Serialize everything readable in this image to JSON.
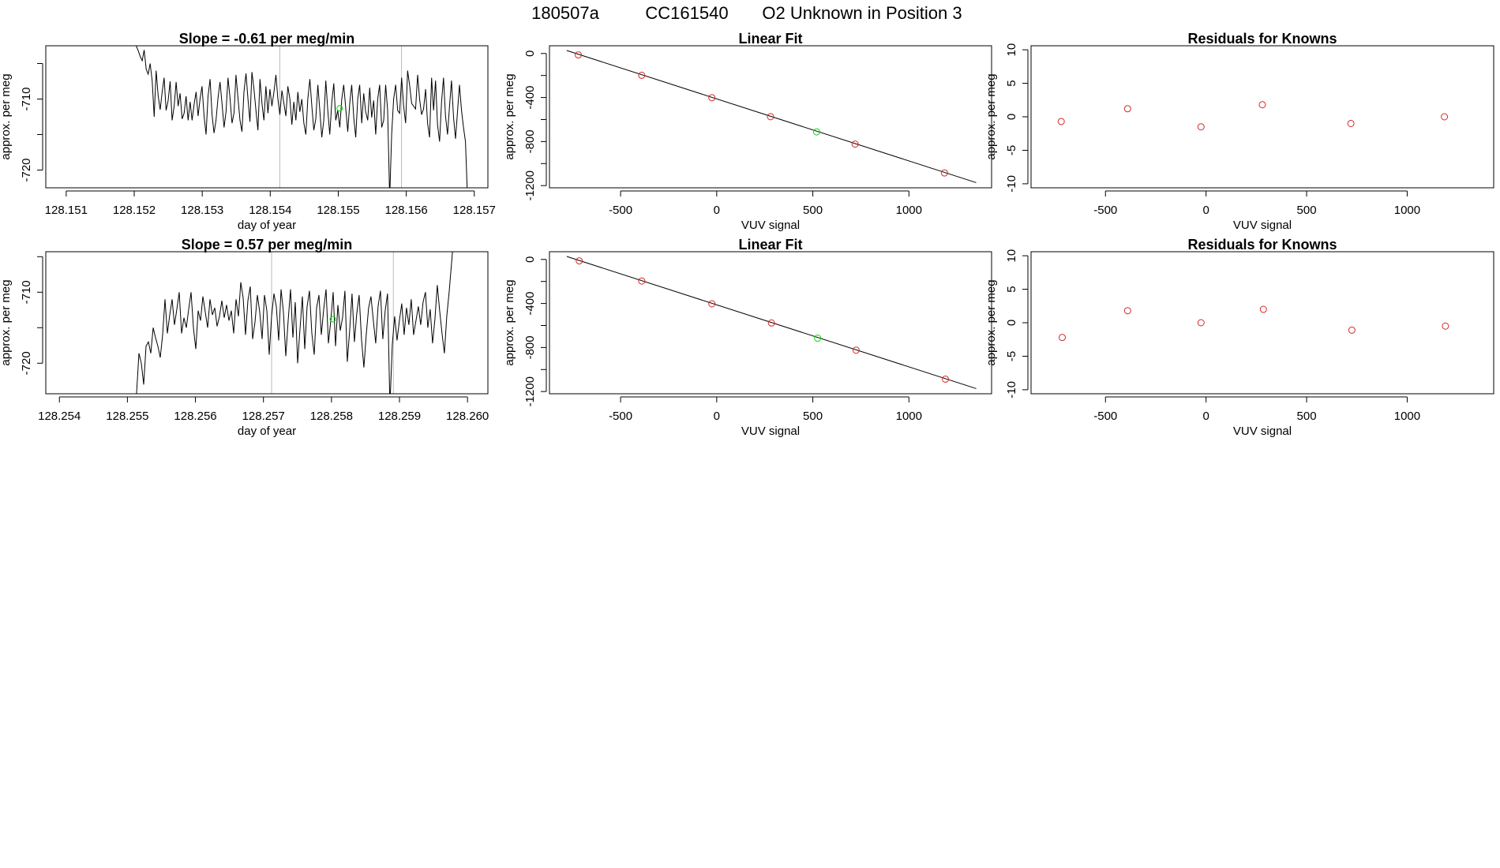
{
  "figure": {
    "title_parts": [
      "180507a",
      "CC161540",
      "O2 Unknown in Position  3"
    ]
  },
  "colors": {
    "known": "#d62728",
    "unknown": "#00dd00",
    "line": "#000000",
    "vline": "#bbbbbb"
  },
  "chart_data": [
    {
      "id": "ts1",
      "type": "line",
      "title": "Slope =  -0.61  per meg/min",
      "xlabel": "day of year",
      "ylabel": "approx. per meg",
      "xlim": [
        128.1507,
        128.1572
      ],
      "ylim": [
        -722.5,
        -702.5
      ],
      "xticks": [
        128.151,
        128.152,
        128.153,
        128.154,
        128.155,
        128.156,
        128.157
      ],
      "xtick_labels": [
        "128.151",
        "128.152",
        "128.153",
        "128.154",
        "128.155",
        "128.156",
        "128.157"
      ],
      "yticks": [
        -720,
        -715,
        -710,
        -705
      ],
      "ytick_labels": [
        "-720",
        "",
        "-710",
        ""
      ],
      "vlines": [
        128.15414,
        128.15593
      ],
      "marker": {
        "x": 128.15502,
        "y": -711.3,
        "label": "unknown"
      },
      "series": [
        {
          "name": "signal",
          "x_start": 128.152,
          "x_end": 128.1569,
          "values": [
            -700.5,
            -702.5,
            -703.2,
            -704.0,
            -704.6,
            -703.1,
            -705.8,
            -706.5,
            -705.0,
            -707.5,
            -712.5,
            -706.0,
            -709.5,
            -711.5,
            -709.0,
            -707.0,
            -711.6,
            -710.2,
            -707.5,
            -713.0,
            -711.0,
            -707.6,
            -711.0,
            -709.2,
            -712.8,
            -712.0,
            -709.6,
            -713.0,
            -710.4,
            -713.0,
            -710.8,
            -709.0,
            -712.4,
            -710.0,
            -708.2,
            -712.4,
            -715.0,
            -709.6,
            -707.2,
            -712.2,
            -714.8,
            -713.0,
            -709.8,
            -707.6,
            -710.6,
            -714.0,
            -711.8,
            -707.0,
            -709.8,
            -713.4,
            -712.0,
            -706.6,
            -709.8,
            -713.0,
            -714.6,
            -709.0,
            -706.4,
            -710.0,
            -713.2,
            -706.2,
            -708.6,
            -711.6,
            -714.4,
            -707.2,
            -710.6,
            -713.0,
            -708.2,
            -712.0,
            -708.6,
            -711.0,
            -709.0,
            -706.6,
            -710.0,
            -712.2,
            -708.8,
            -710.6,
            -712.4,
            -708.2,
            -710.0,
            -713.6,
            -710.4,
            -713.0,
            -709.0,
            -711.8,
            -710.0,
            -713.4,
            -715.0,
            -710.0,
            -707.2,
            -711.0,
            -714.4,
            -712.8,
            -708.0,
            -711.6,
            -715.4,
            -713.0,
            -707.4,
            -711.6,
            -715.0,
            -710.4,
            -707.8,
            -713.0,
            -711.6,
            -714.0,
            -710.0,
            -708.0,
            -711.4,
            -714.6,
            -710.6,
            -708.0,
            -712.6,
            -715.4,
            -710.0,
            -708.0,
            -713.4,
            -709.2,
            -711.8,
            -713.0,
            -708.4,
            -712.6,
            -710.2,
            -715.0,
            -710.0,
            -708.0,
            -714.0,
            -713.0,
            -708.0,
            -711.6,
            -724.0,
            -715.0,
            -710.0,
            -708.0,
            -711.6,
            -712.0,
            -707.0,
            -711.0,
            -713.4,
            -706.0,
            -708.0,
            -710.6,
            -711.0,
            -711.4,
            -706.6,
            -710.0,
            -712.2,
            -711.4,
            -708.6,
            -713.4,
            -715.4,
            -707.0,
            -711.6,
            -707.4,
            -713.6,
            -716.0,
            -710.4,
            -707.0,
            -712.4,
            -715.0,
            -711.0,
            -707.4,
            -712.6,
            -715.6,
            -711.8,
            -708.0,
            -711.6,
            -714.0,
            -716.0,
            -724.0
          ]
        }
      ]
    },
    {
      "id": "fit1",
      "type": "scatter",
      "title": "Linear Fit",
      "xlabel": "VUV signal",
      "ylabel": "approx. per meg",
      "xlim": [
        -870,
        1430
      ],
      "ylim": [
        -1220,
        70
      ],
      "xticks": [
        -500,
        0,
        500,
        1000
      ],
      "xtick_labels": [
        "-500",
        "0",
        "500",
        "1000"
      ],
      "yticks": [
        0,
        -400,
        -800,
        -1200
      ],
      "ytick_labels": [
        "0",
        "-400",
        "-800",
        "-1200"
      ],
      "minor_yticks": [
        -200,
        -600,
        -1000
      ],
      "fit_line": {
        "x": [
          -780,
          1350
        ],
        "y": [
          27,
          -1173
        ]
      },
      "knowns": {
        "x": [
          -720,
          -390,
          -25,
          280,
          720,
          1185
        ],
        "y": [
          -13,
          -198,
          -402,
          -574,
          -823,
          -1085
        ]
      },
      "unknown": {
        "x": [
          520
        ],
        "y": [
          -712
        ]
      }
    },
    {
      "id": "res1",
      "type": "scatter",
      "title": "Residuals for Knowns",
      "xlabel": "VUV signal",
      "ylabel": "approx. per meg",
      "xlim": [
        -870,
        1430
      ],
      "ylim": [
        -10.6,
        10.6
      ],
      "xticks": [
        -500,
        0,
        500,
        1000
      ],
      "xtick_labels": [
        "-500",
        "0",
        "500",
        "1000"
      ],
      "yticks": [
        10,
        5,
        0,
        -5,
        -10
      ],
      "ytick_labels": [
        "10",
        "5",
        "0",
        "-5",
        "-10"
      ],
      "knowns": {
        "x": [
          -720,
          -390,
          -25,
          280,
          720,
          1185
        ],
        "y": [
          -0.7,
          1.2,
          -1.5,
          1.8,
          -1.0,
          0.0
        ]
      }
    },
    {
      "id": "ts2",
      "type": "line",
      "title": "Slope =  0.57  per meg/min",
      "xlabel": "day of year",
      "ylabel": "approx. per meg",
      "xlim": [
        128.2538,
        128.2603
      ],
      "ylim": [
        -724.3,
        -704.3
      ],
      "xticks": [
        128.254,
        128.255,
        128.256,
        128.257,
        128.258,
        128.259,
        128.26
      ],
      "xtick_labels": [
        "128.254",
        "128.255",
        "128.256",
        "128.257",
        "128.258",
        "128.259",
        "128.260"
      ],
      "yticks": [
        -720,
        -715,
        -710,
        -705
      ],
      "ytick_labels": [
        "-720",
        "",
        "-710",
        ""
      ],
      "vlines": [
        128.25712,
        128.25891
      ],
      "marker": {
        "x": 128.25802,
        "y": -713.8,
        "label": "unknown"
      },
      "series": [
        {
          "name": "signal",
          "x_start": 128.2551,
          "x_end": 128.2598,
          "values": [
            -726.0,
            -724.2,
            -718.6,
            -720.0,
            -723.0,
            -717.6,
            -717.0,
            -718.6,
            -715.0,
            -716.4,
            -717.6,
            -719.2,
            -716.0,
            -711.0,
            -715.8,
            -713.2,
            -711.0,
            -714.6,
            -712.4,
            -710.0,
            -715.8,
            -713.6,
            -715.0,
            -712.4,
            -710.0,
            -715.0,
            -718.0,
            -712.6,
            -714.0,
            -710.6,
            -712.8,
            -715.0,
            -711.0,
            -713.2,
            -712.2,
            -714.8,
            -713.4,
            -711.2,
            -713.6,
            -711.8,
            -714.0,
            -712.6,
            -715.8,
            -711.0,
            -713.4,
            -708.6,
            -710.8,
            -716.0,
            -711.2,
            -709.2,
            -716.6,
            -714.2,
            -710.4,
            -712.8,
            -716.6,
            -710.4,
            -712.6,
            -718.8,
            -713.4,
            -710.2,
            -712.0,
            -716.8,
            -709.6,
            -712.8,
            -719.0,
            -714.0,
            -709.6,
            -716.4,
            -711.4,
            -720.0,
            -715.2,
            -710.6,
            -718.0,
            -712.0,
            -709.8,
            -715.8,
            -718.8,
            -712.2,
            -710.4,
            -716.0,
            -712.4,
            -709.6,
            -717.2,
            -714.0,
            -710.0,
            -717.6,
            -711.8,
            -715.4,
            -713.6,
            -709.8,
            -719.8,
            -715.4,
            -710.2,
            -717.0,
            -713.0,
            -710.4,
            -716.6,
            -720.6,
            -716.0,
            -712.2,
            -710.6,
            -714.0,
            -717.2,
            -712.0,
            -709.8,
            -716.6,
            -712.6,
            -710.2,
            -726.0,
            -717.4,
            -713.4,
            -716.8,
            -714.0,
            -711.6,
            -716.0,
            -712.2,
            -714.6,
            -711.0,
            -716.0,
            -714.0,
            -712.0,
            -714.6,
            -711.4,
            -710.0,
            -715.0,
            -712.4,
            -717.2,
            -713.8,
            -709.0,
            -712.6,
            -715.8,
            -718.6,
            -713.4,
            -710.0,
            -706.0,
            -702.0
          ]
        }
      ]
    },
    {
      "id": "fit2",
      "type": "scatter",
      "title": "Linear Fit",
      "xlabel": "VUV signal",
      "ylabel": "approx. per meg",
      "xlim": [
        -870,
        1430
      ],
      "ylim": [
        -1220,
        70
      ],
      "xticks": [
        -500,
        0,
        500,
        1000
      ],
      "xtick_labels": [
        "-500",
        "0",
        "500",
        "1000"
      ],
      "yticks": [
        0,
        -400,
        -800,
        -1200
      ],
      "ytick_labels": [
        "0",
        "-400",
        "-800",
        "-1200"
      ],
      "minor_yticks": [
        -200,
        -600,
        -1000
      ],
      "fit_line": {
        "x": [
          -780,
          1350
        ],
        "y": [
          27,
          -1173
        ]
      },
      "knowns": {
        "x": [
          -715,
          -390,
          -25,
          285,
          725,
          1190
        ],
        "y": [
          -13,
          -196,
          -403,
          -577,
          -824,
          -1087
        ]
      },
      "unknown": {
        "x": [
          525
        ],
        "y": [
          -715
        ]
      }
    },
    {
      "id": "res2",
      "type": "scatter",
      "title": "Residuals for Knowns",
      "xlabel": "VUV signal",
      "ylabel": "approx. per meg",
      "xlim": [
        -870,
        1430
      ],
      "ylim": [
        -10.6,
        10.6
      ],
      "xticks": [
        -500,
        0,
        500,
        1000
      ],
      "xtick_labels": [
        "-500",
        "0",
        "500",
        "1000"
      ],
      "yticks": [
        10,
        5,
        0,
        -5,
        -10
      ],
      "ytick_labels": [
        "10",
        "5",
        "0",
        "-5",
        "-10"
      ],
      "knowns": {
        "x": [
          -715,
          -390,
          -25,
          285,
          725,
          1190
        ],
        "y": [
          -2.2,
          1.8,
          0.0,
          2.0,
          -1.1,
          -0.5
        ]
      }
    }
  ]
}
